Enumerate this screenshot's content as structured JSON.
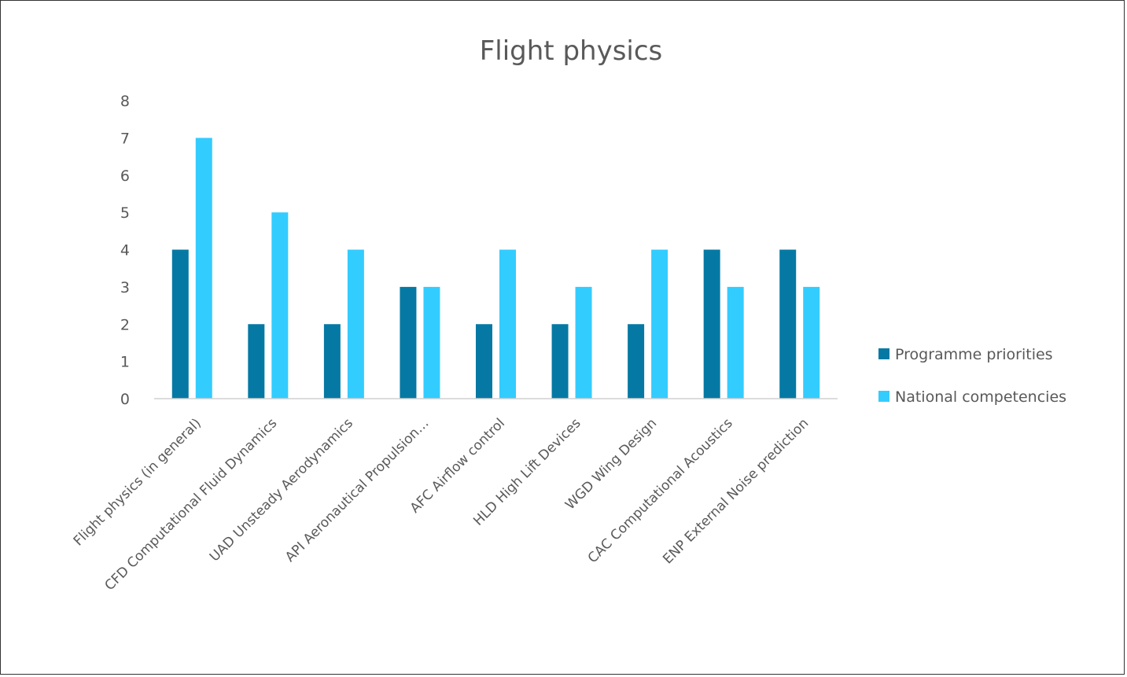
{
  "chart_data": {
    "type": "bar",
    "title": "Flight physics",
    "categories": [
      "Flight physics (in general)",
      "CFD Computational Fluid Dynamics",
      "UAD Unsteady Aerodynamics",
      "API Aeronautical Propulsion…",
      "AFC Airflow control",
      "HLD High Lift Devices",
      "WGD Wing Design",
      "CAC Computational Acoustics",
      "ENP External Noise prediction"
    ],
    "series": [
      {
        "name": "Programme priorities",
        "color": "#0579A4",
        "values": [
          4,
          2,
          2,
          3,
          2,
          2,
          2,
          4,
          4
        ]
      },
      {
        "name": "National competencies",
        "color": "#33CCFF",
        "values": [
          7,
          5,
          4,
          3,
          4,
          3,
          4,
          3,
          3
        ]
      }
    ],
    "ylim": [
      0,
      8
    ],
    "yticks": [
      0,
      1,
      2,
      3,
      4,
      5,
      6,
      7,
      8
    ],
    "grid": false,
    "legend_position": "right"
  }
}
